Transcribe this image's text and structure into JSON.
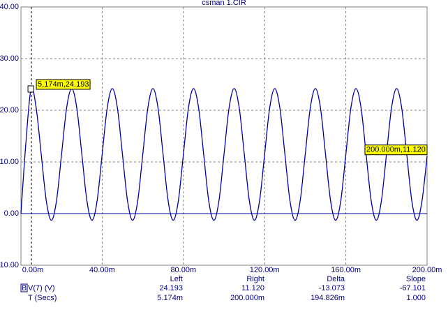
{
  "chart_data": {
    "type": "line",
    "title": "csman 1.CIR",
    "x": [
      0,
      2.5,
      5,
      7.5,
      10,
      12.5,
      15,
      17.5,
      20,
      22.5,
      25,
      27.5,
      30,
      32.5,
      35,
      37.5,
      40,
      42.5,
      45,
      47.5,
      50,
      52.5,
      55,
      57.5,
      60,
      62.5,
      65,
      67.5,
      70,
      72.5,
      75,
      77.5,
      80,
      82.5,
      85,
      87.5,
      90,
      92.5,
      95,
      97.5,
      100,
      102.5,
      105,
      107.5,
      110,
      112.5,
      115,
      117.5,
      120,
      122.5,
      125,
      127.5,
      130,
      132.5,
      135,
      137.5,
      140,
      142.5,
      145,
      147.5,
      150,
      152.5,
      155,
      157.5,
      160,
      162.5,
      165,
      167.5,
      170,
      172.5,
      175,
      177.5,
      180,
      182.5,
      185,
      187.5,
      190,
      192.5,
      195,
      197.5,
      200
    ],
    "series": [
      {
        "name": "V(7) (V)",
        "color": "#0000a0",
        "values": [
          0,
          14,
          24.19,
          20.47,
          11.45,
          2.43,
          -1.3,
          2.43,
          11.45,
          20.47,
          24.2,
          20.47,
          11.45,
          2.43,
          -1.3,
          2.43,
          11.45,
          20.47,
          24.2,
          20.47,
          11.45,
          2.43,
          -1.3,
          2.43,
          11.45,
          20.47,
          24.2,
          20.47,
          11.45,
          2.43,
          -1.3,
          2.43,
          11.45,
          20.47,
          24.2,
          20.47,
          11.45,
          2.43,
          -1.3,
          2.43,
          11.45,
          20.47,
          24.2,
          20.47,
          11.45,
          2.43,
          -1.3,
          2.43,
          11.45,
          20.47,
          24.2,
          20.47,
          11.45,
          2.43,
          -1.3,
          2.43,
          11.45,
          20.47,
          24.2,
          20.47,
          11.45,
          2.43,
          -1.3,
          2.43,
          11.45,
          20.47,
          24.2,
          20.47,
          11.45,
          2.43,
          -1.3,
          2.43,
          11.45,
          20.47,
          24.2,
          20.47,
          11.45,
          2.43,
          -1.3,
          2.43,
          11.12
        ]
      }
    ],
    "xlim": [
      0,
      200
    ],
    "ylim": [
      -10,
      40
    ],
    "xticks": [
      {
        "value": 0,
        "label": "0.00m"
      },
      {
        "value": 40,
        "label": "40.00m"
      },
      {
        "value": 80,
        "label": "80.00m"
      },
      {
        "value": 120,
        "label": "120.00m"
      },
      {
        "value": 160,
        "label": "160.00m"
      },
      {
        "value": 200,
        "label": "200.00m"
      }
    ],
    "yticks": [
      {
        "value": -10,
        "label": "-10.00"
      },
      {
        "value": 0,
        "label": "0.00"
      },
      {
        "value": 10,
        "label": "10.00"
      },
      {
        "value": 20,
        "label": "20.00"
      },
      {
        "value": 30,
        "label": "30.00"
      },
      {
        "value": 40,
        "label": "40.00"
      }
    ],
    "grid": true,
    "cursors": [
      {
        "x": 5.174,
        "y": 24.193,
        "label": "5.174m,24.193"
      },
      {
        "x": 200,
        "y": 11.12,
        "label": "200.000m,11.120"
      }
    ]
  },
  "cursor_table": {
    "header": [
      "Left",
      "Right",
      "Delta",
      "Slope"
    ],
    "rows": [
      {
        "marker": "B",
        "label": "V(7) (V)",
        "cells": [
          "24.193",
          "11.120",
          "-13.073",
          "-67.101"
        ]
      },
      {
        "label": "T (Secs)",
        "cells": [
          "5.174m",
          "200.000m",
          "194.826m",
          "1.000"
        ]
      }
    ]
  }
}
